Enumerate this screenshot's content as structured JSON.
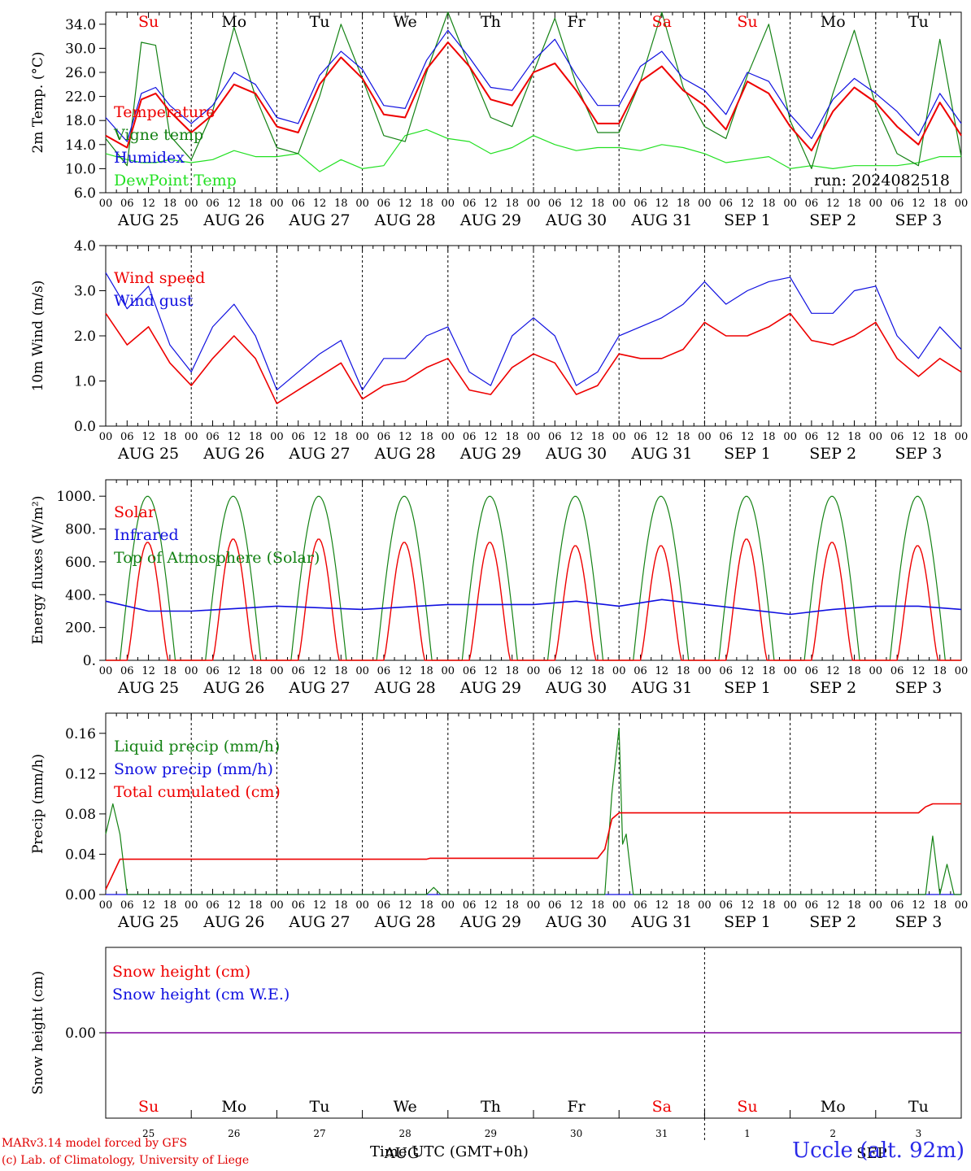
{
  "colors": {
    "red": "#ee0000",
    "green": "#148214",
    "blue": "#1010e0",
    "lightgreen": "#22e022",
    "purple": "#8000a0",
    "weekend": "#ee0000",
    "weekday": "#000000"
  },
  "days": {
    "weekday_abbrevs": [
      "Su",
      "Mo",
      "Tu",
      "We",
      "Th",
      "Fr",
      "Sa",
      "Su",
      "Mo",
      "Tu"
    ],
    "weekend_flags": [
      true,
      false,
      false,
      false,
      false,
      false,
      true,
      true,
      false,
      false
    ],
    "date_labels": [
      "AUG 25",
      "AUG 26",
      "AUG 27",
      "AUG 28",
      "AUG 29",
      "AUG 30",
      "AUG 31",
      "SEP  1",
      "SEP  2",
      "SEP  3"
    ],
    "day_numbers": [
      "25",
      "26",
      "27",
      "28",
      "29",
      "30",
      "31",
      "1",
      "2",
      "3"
    ],
    "hour_ticks": [
      "00",
      "06",
      "12",
      "18"
    ],
    "hour_end": "00"
  },
  "footer": {
    "credit_line1": "MARv3.14 model forced by GFS",
    "credit_line2": "(c) Lab. of Climatology, University of Liege",
    "xaxis_title": "Time UTC (GMT+0h)",
    "overlap_month1": "AUG",
    "overlap_month2": "SEP",
    "station": "Uccle (alt. 92m)"
  },
  "chart_data": [
    {
      "type": "line",
      "ylabel": "2m Temp. (°C)",
      "ylim": [
        6.0,
        36.0
      ],
      "yticks": [
        6.0,
        10.0,
        14.0,
        18.0,
        22.0,
        26.0,
        30.0,
        34.0
      ],
      "ytick_labels": [
        "6.0",
        "10.0",
        "14.0",
        "18.0",
        "22.0",
        "26.0",
        "30.0",
        "34.0"
      ],
      "annotation": "run: 2024082518",
      "x_hours": [
        0,
        6,
        10,
        14,
        18,
        24,
        30,
        36,
        42,
        48,
        54,
        60,
        66,
        72,
        78,
        84,
        90,
        96,
        102,
        108,
        114,
        120,
        126,
        132,
        138,
        144,
        150,
        156,
        162,
        168,
        174,
        180,
        186,
        192,
        198,
        204,
        210,
        216,
        222,
        228,
        234,
        240
      ],
      "series": [
        {
          "name": "Temperature",
          "color": "red",
          "values": [
            15.5,
            13.5,
            21.5,
            22.5,
            19.5,
            16.0,
            19.0,
            24.0,
            22.5,
            17.0,
            16.0,
            24.0,
            28.5,
            25.0,
            19.0,
            18.5,
            26.5,
            31.0,
            27.0,
            21.5,
            20.5,
            26.0,
            27.5,
            23.0,
            17.5,
            17.5,
            24.5,
            27.0,
            23.0,
            20.5,
            16.5,
            24.5,
            22.5,
            17.0,
            13.0,
            19.5,
            23.5,
            21.0,
            17.0,
            14.0,
            21.0,
            15.5
          ]
        },
        {
          "name": "Vigne temp",
          "color": "green",
          "values": [
            15.0,
            10.5,
            31.0,
            30.5,
            15.5,
            11.5,
            19.5,
            33.5,
            22.0,
            13.5,
            12.5,
            22.0,
            34.0,
            25.0,
            15.5,
            14.5,
            26.0,
            36.0,
            27.0,
            18.5,
            17.0,
            26.0,
            35.0,
            24.0,
            16.0,
            16.0,
            24.5,
            36.0,
            23.5,
            17.0,
            15.0,
            25.5,
            34.0,
            18.0,
            10.0,
            22.5,
            33.0,
            20.5,
            12.5,
            10.5,
            31.5,
            12.0
          ]
        },
        {
          "name": "Humidex",
          "color": "blue",
          "values": [
            18.5,
            14.5,
            22.5,
            23.5,
            20.5,
            17.5,
            20.5,
            26.0,
            24.0,
            18.5,
            17.5,
            25.5,
            29.5,
            26.5,
            20.5,
            20.0,
            28.0,
            33.0,
            28.5,
            23.5,
            23.0,
            28.0,
            31.5,
            25.5,
            20.5,
            20.5,
            27.0,
            29.5,
            25.0,
            23.0,
            19.0,
            26.0,
            24.5,
            19.0,
            15.0,
            21.5,
            25.0,
            22.5,
            19.5,
            15.5,
            22.5,
            17.5
          ]
        },
        {
          "name": "DewPoint Temp",
          "color": "lightgreen",
          "values": [
            12.5,
            11.5,
            11.0,
            11.0,
            11.5,
            11.0,
            11.5,
            13.0,
            12.0,
            12.0,
            12.5,
            9.5,
            11.5,
            10.0,
            10.5,
            15.5,
            16.5,
            15.0,
            14.5,
            12.5,
            13.5,
            15.5,
            14.0,
            13.0,
            13.5,
            13.5,
            13.0,
            14.0,
            13.5,
            12.5,
            11.0,
            11.5,
            12.0,
            10.0,
            10.5,
            10.0,
            10.5,
            10.5,
            10.5,
            11.0,
            12.0,
            12.0
          ]
        }
      ]
    },
    {
      "type": "line",
      "ylabel": "10m Wind (m/s)",
      "ylim": [
        0.0,
        4.0
      ],
      "yticks": [
        0.0,
        1.0,
        2.0,
        3.0,
        4.0
      ],
      "ytick_labels": [
        "0.0",
        "1.0",
        "2.0",
        "3.0",
        "4.0"
      ],
      "x_hours": [
        0,
        6,
        12,
        18,
        24,
        30,
        36,
        42,
        48,
        54,
        60,
        66,
        72,
        78,
        84,
        90,
        96,
        102,
        108,
        114,
        120,
        126,
        132,
        138,
        144,
        150,
        156,
        162,
        168,
        174,
        180,
        186,
        192,
        198,
        204,
        210,
        216,
        222,
        228,
        234,
        240
      ],
      "series": [
        {
          "name": "Wind speed",
          "color": "red",
          "values": [
            2.5,
            1.8,
            2.2,
            1.4,
            0.9,
            1.5,
            2.0,
            1.5,
            0.5,
            0.8,
            1.1,
            1.4,
            0.6,
            0.9,
            1.0,
            1.3,
            1.5,
            0.8,
            0.7,
            1.3,
            1.6,
            1.4,
            0.7,
            0.9,
            1.6,
            1.5,
            1.5,
            1.7,
            2.3,
            2.0,
            2.0,
            2.2,
            2.5,
            1.9,
            1.8,
            2.0,
            2.3,
            1.5,
            1.1,
            1.5,
            1.2
          ]
        },
        {
          "name": "Wind gust",
          "color": "blue",
          "values": [
            3.4,
            2.6,
            3.1,
            1.8,
            1.2,
            2.2,
            2.7,
            2.0,
            0.8,
            1.2,
            1.6,
            1.9,
            0.8,
            1.5,
            1.5,
            2.0,
            2.2,
            1.2,
            0.9,
            2.0,
            2.4,
            2.0,
            0.9,
            1.2,
            2.0,
            2.2,
            2.4,
            2.7,
            3.2,
            2.7,
            3.0,
            3.2,
            3.3,
            2.5,
            2.5,
            3.0,
            3.1,
            2.0,
            1.5,
            2.2,
            1.7
          ]
        }
      ]
    },
    {
      "type": "line",
      "ylabel": "Energy fluxes (W/m²)",
      "ylim": [
        0,
        1100
      ],
      "yticks": [
        0,
        200,
        400,
        600,
        800,
        1000
      ],
      "ytick_labels": [
        "0.",
        "200.",
        "400.",
        "600.",
        "800.",
        "1000."
      ],
      "solar_peaks_day": [
        720,
        740,
        740,
        720,
        720,
        700,
        700,
        740,
        720,
        700
      ],
      "toa_peak": 1000,
      "series": [
        {
          "name": "Solar",
          "color": "red"
        },
        {
          "name": "Infrared",
          "color": "blue",
          "x_hours": [
            0,
            12,
            24,
            48,
            72,
            96,
            120,
            132,
            144,
            156,
            168,
            180,
            192,
            204,
            216,
            228,
            240
          ],
          "values": [
            360,
            300,
            300,
            330,
            310,
            340,
            340,
            360,
            330,
            370,
            340,
            310,
            280,
            310,
            330,
            330,
            310
          ]
        },
        {
          "name": "Top of Atmosphere (Solar)",
          "color": "green"
        }
      ]
    },
    {
      "type": "line",
      "ylabel": "Precip (mm/h)",
      "ylim": [
        0.0,
        0.18
      ],
      "yticks": [
        0.0,
        0.04,
        0.08,
        0.12,
        0.16
      ],
      "ytick_labels": [
        "0.00",
        "0.04",
        "0.08",
        "0.12",
        "0.16"
      ],
      "series": [
        {
          "name": "Liquid precip (mm/h)",
          "color": "green",
          "x_hours": [
            0,
            2,
            4,
            6,
            8,
            10,
            90,
            92,
            94,
            96,
            140,
            142,
            144,
            145,
            146,
            148,
            150,
            230,
            232,
            234,
            236,
            238,
            240
          ],
          "values": [
            0.06,
            0.09,
            0.06,
            0.0,
            0.0,
            0.0,
            0.0,
            0.007,
            0.0,
            0.0,
            0.0,
            0.1,
            0.165,
            0.05,
            0.06,
            0.0,
            0.0,
            0.0,
            0.058,
            0.0,
            0.03,
            0.0,
            0.0
          ]
        },
        {
          "name": "Snow precip (mm/h)",
          "color": "blue",
          "x_hours": [
            0,
            240
          ],
          "values": [
            0.0,
            0.0
          ]
        },
        {
          "name": "Total cumulated (cm)",
          "color": "red",
          "x_hours": [
            0,
            4,
            5,
            90,
            91,
            138,
            140,
            142,
            144,
            228,
            230,
            232,
            240
          ],
          "values": [
            0.005,
            0.035,
            0.035,
            0.035,
            0.036,
            0.036,
            0.045,
            0.075,
            0.081,
            0.081,
            0.087,
            0.09,
            0.09
          ]
        }
      ]
    },
    {
      "type": "line",
      "ylabel": "Snow height (cm)",
      "ylim": [
        -1.0,
        1.0
      ],
      "yticks": [
        0.0
      ],
      "ytick_labels": [
        "0.00"
      ],
      "series": [
        {
          "name": "Snow height (cm)",
          "color": "red",
          "x_hours": [
            0,
            240
          ],
          "values": [
            0.0,
            0.0
          ]
        },
        {
          "name": "Snow height (cm W.E.)",
          "color": "blue",
          "x_hours": [
            0,
            240
          ],
          "values": [
            0.0,
            0.0
          ]
        }
      ]
    }
  ]
}
